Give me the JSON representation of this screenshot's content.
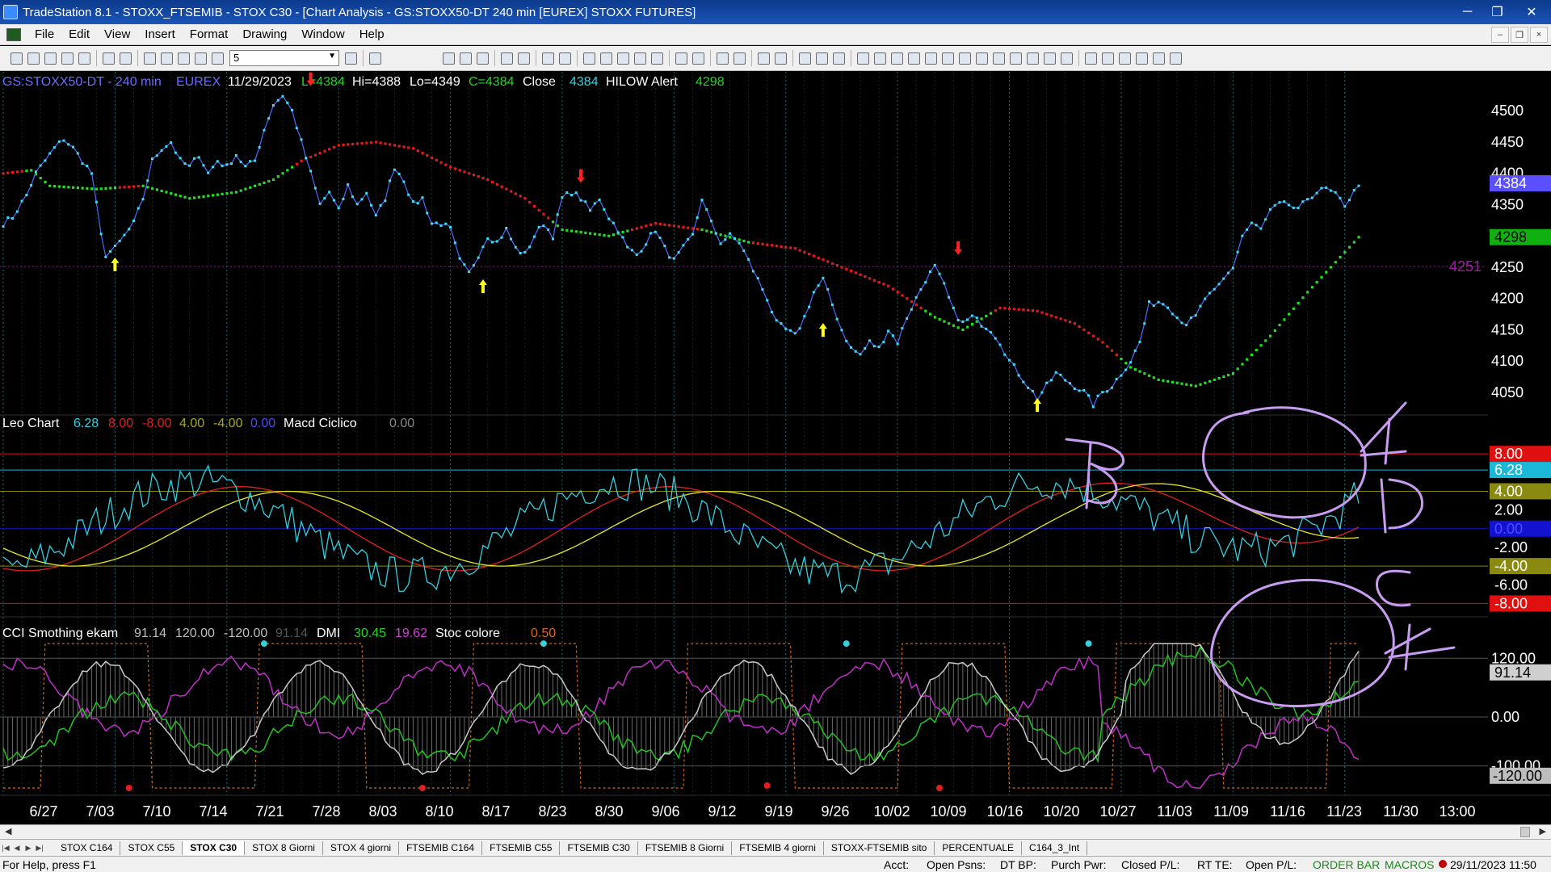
{
  "window": {
    "title": "TradeStation 8.1 - STOXX_FTSEMIB - STOX  C30 - [Chart Analysis - GS:STOXX50-DT  240 min  [EUREX] STOXX FUTURES]",
    "controls": [
      "─",
      "❐",
      "✕"
    ]
  },
  "menu": {
    "items": [
      "File",
      "Edit",
      "View",
      "Insert",
      "Format",
      "Drawing",
      "Window",
      "Help"
    ],
    "mdi_controls": [
      "–",
      "❐",
      "×"
    ]
  },
  "toolbar": {
    "combo_value": "5"
  },
  "colors": {
    "background": "#000000",
    "price_line": "#4b6cff",
    "price_dots": "#3fe0f0",
    "ma_up": "#22e022",
    "ma_down": "#e51b1b",
    "axis_text": "#ffffff",
    "cyan_osc": "#35d0e0",
    "yellow": "#e8e825",
    "red": "#e02020",
    "magenta": "#c02fc8",
    "green_osc": "#21c421",
    "grey_osc": "#bfbfbf",
    "orange_dash": "#d2691e",
    "annotation": "#c89cf0"
  },
  "panel1": {
    "label_main": "GS:STOXX50-DT - 240 min",
    "label_exchange": "EUREX",
    "label_date": "11/29/2023",
    "label_l": "L=4384",
    "label_hi": "Hi=4388",
    "label_lo": "Lo=4349",
    "label_c": "C=4384",
    "label_close": "Close",
    "label_close_val": "4384",
    "label_hilow": "HILOW Alert",
    "label_hilow_val": "4298",
    "yticks": [
      "4500",
      "4450",
      "4400",
      "4350",
      "4300",
      "4250",
      "4200",
      "4150",
      "4100",
      "4050"
    ],
    "ytick_values": [
      4500,
      4450,
      4400,
      4350,
      4300,
      4250,
      4200,
      4150,
      4100,
      4050
    ],
    "ylim": [
      4020,
      4530
    ],
    "marker_close": "4384",
    "marker_hilow": "4298",
    "marker_level": "4251",
    "level_value": 4251
  },
  "panel2": {
    "label_name": "Leo Chart",
    "val1": "6.28",
    "val2": "8.00",
    "val3": "-8.00",
    "val4": "4.00",
    "val5": "-4.00",
    "val6": "0.00",
    "label_macd": "Macd Ciclico",
    "val_macd": "0.00",
    "yticks": [
      "2.00",
      "-2.00",
      "-6.00"
    ],
    "ytick_values": [
      2,
      -2,
      -6
    ],
    "ylim": [
      -9,
      10
    ],
    "levels": [
      {
        "label": "8.00",
        "value": 8,
        "bg": "#e01010",
        "fg": "#ffffff"
      },
      {
        "label": "6.28",
        "value": 6.28,
        "bg": "#1bb8d8",
        "fg": "#ffffff"
      },
      {
        "label": "4.00",
        "value": 4,
        "bg": "#8a8a10",
        "fg": "#ffffff"
      },
      {
        "label": "0.00",
        "value": 0,
        "bg": "#1212d0",
        "fg": "#4b4bff"
      },
      {
        "label": "-4.00",
        "value": -4,
        "bg": "#8a8a10",
        "fg": "#ffffff"
      },
      {
        "label": "-8.00",
        "value": -8,
        "bg": "#e01010",
        "fg": "#ffffff"
      }
    ]
  },
  "panel3": {
    "label_name": "CCI Smothing ekam",
    "val1": "91.14",
    "val2": "120.00",
    "val3": "-120.00",
    "val4": "91.14",
    "label_dmi": "DMI",
    "val_dmi1": "30.45",
    "val_dmi2": "19.62",
    "label_stoc": "Stoc colore",
    "val_stoc": "0.50",
    "ylim": [
      -150,
      160
    ],
    "yticks": [
      "120.00",
      "0.00",
      "-100.00"
    ],
    "ytick_values": [
      120,
      0,
      -100
    ],
    "marker_cci": "91.14",
    "marker_minus120": "-120.00"
  },
  "xaxis": {
    "labels": [
      "6/27",
      "7/03",
      "7/10",
      "7/14",
      "7/21",
      "7/28",
      "8/03",
      "8/10",
      "8/17",
      "8/23",
      "8/30",
      "9/06",
      "9/12",
      "9/19",
      "9/26",
      "10/02",
      "10/09",
      "10/16",
      "10/20",
      "10/27",
      "11/03",
      "11/09",
      "11/16",
      "11/23",
      "11/30",
      "13:00"
    ]
  },
  "tabs": [
    "STOX C164",
    "STOX C55",
    "STOX  C30",
    "STOX  8 Giorni",
    "STOX 4 giorni",
    "FTSEMIB C164",
    "FTSEMIB C55",
    "FTSEMIB C30",
    "FTSEMIB  8 Giorni",
    "FTSEMIB  4 giorni",
    "STOXX-FTSEMIB sito",
    "PERCENTUALE",
    "C164_3_Int"
  ],
  "active_tab": 2,
  "status": {
    "help": "For Help, press F1",
    "acct": "Acct:",
    "open_psns": "Open Psns:",
    "dt_bp": "DT BP:",
    "purch_pwr": "Purch Pwr:",
    "closed_pl": "Closed P/L:",
    "rt_te": "RT TE:",
    "open_pl": "Open P/L:",
    "order_bar": "ORDER BAR",
    "macros": "MACROS",
    "datetime": "29/11/2023 11:50"
  },
  "chart_data": {
    "type": "line",
    "price_anchors": [
      [
        0,
        4320
      ],
      [
        2,
        4330
      ],
      [
        5,
        4365
      ],
      [
        7,
        4400
      ],
      [
        9,
        4420
      ],
      [
        11,
        4440
      ],
      [
        13,
        4455
      ],
      [
        15,
        4440
      ],
      [
        17,
        4420
      ],
      [
        19,
        4400
      ],
      [
        20,
        4350
      ],
      [
        21,
        4300
      ],
      [
        22,
        4270
      ],
      [
        24,
        4280
      ],
      [
        26,
        4300
      ],
      [
        28,
        4320
      ],
      [
        30,
        4360
      ],
      [
        32,
        4420
      ],
      [
        34,
        4440
      ],
      [
        36,
        4450
      ],
      [
        38,
        4420
      ],
      [
        40,
        4410
      ],
      [
        42,
        4430
      ],
      [
        44,
        4400
      ],
      [
        46,
        4420
      ],
      [
        48,
        4410
      ],
      [
        50,
        4430
      ],
      [
        52,
        4410
      ],
      [
        54,
        4420
      ],
      [
        56,
        4470
      ],
      [
        58,
        4510
      ],
      [
        60,
        4525
      ],
      [
        62,
        4500
      ],
      [
        64,
        4450
      ],
      [
        66,
        4400
      ],
      [
        68,
        4350
      ],
      [
        70,
        4370
      ],
      [
        72,
        4340
      ],
      [
        74,
        4380
      ],
      [
        76,
        4350
      ],
      [
        78,
        4370
      ],
      [
        80,
        4330
      ],
      [
        82,
        4360
      ],
      [
        84,
        4410
      ],
      [
        86,
        4390
      ],
      [
        88,
        4350
      ],
      [
        90,
        4360
      ],
      [
        92,
        4320
      ],
      [
        94,
        4320
      ],
      [
        96,
        4310
      ],
      [
        98,
        4260
      ],
      [
        100,
        4240
      ],
      [
        102,
        4270
      ],
      [
        104,
        4300
      ],
      [
        106,
        4290
      ],
      [
        108,
        4310
      ],
      [
        110,
        4280
      ],
      [
        112,
        4270
      ],
      [
        114,
        4300
      ],
      [
        116,
        4320
      ],
      [
        118,
        4300
      ],
      [
        120,
        4360
      ],
      [
        122,
        4370
      ],
      [
        124,
        4360
      ],
      [
        126,
        4340
      ],
      [
        128,
        4360
      ],
      [
        130,
        4330
      ],
      [
        132,
        4310
      ],
      [
        134,
        4280
      ],
      [
        136,
        4270
      ],
      [
        138,
        4290
      ],
      [
        140,
        4310
      ],
      [
        142,
        4280
      ],
      [
        144,
        4260
      ],
      [
        146,
        4280
      ],
      [
        148,
        4300
      ],
      [
        150,
        4360
      ],
      [
        152,
        4320
      ],
      [
        154,
        4290
      ],
      [
        156,
        4300
      ],
      [
        158,
        4290
      ],
      [
        160,
        4260
      ],
      [
        162,
        4230
      ],
      [
        164,
        4200
      ],
      [
        166,
        4160
      ],
      [
        168,
        4150
      ],
      [
        170,
        4140
      ],
      [
        172,
        4170
      ],
      [
        174,
        4210
      ],
      [
        176,
        4230
      ],
      [
        178,
        4190
      ],
      [
        180,
        4150
      ],
      [
        182,
        4120
      ],
      [
        184,
        4110
      ],
      [
        186,
        4130
      ],
      [
        188,
        4120
      ],
      [
        190,
        4150
      ],
      [
        192,
        4130
      ],
      [
        194,
        4170
      ],
      [
        196,
        4200
      ],
      [
        198,
        4230
      ],
      [
        200,
        4250
      ],
      [
        202,
        4220
      ],
      [
        204,
        4180
      ],
      [
        206,
        4160
      ],
      [
        208,
        4170
      ],
      [
        210,
        4160
      ],
      [
        212,
        4150
      ],
      [
        214,
        4130
      ],
      [
        216,
        4100
      ],
      [
        218,
        4080
      ],
      [
        220,
        4060
      ],
      [
        222,
        4040
      ],
      [
        224,
        4060
      ],
      [
        226,
        4080
      ],
      [
        228,
        4070
      ],
      [
        230,
        4060
      ],
      [
        232,
        4050
      ],
      [
        234,
        4030
      ],
      [
        236,
        4050
      ],
      [
        238,
        4060
      ],
      [
        240,
        4080
      ],
      [
        242,
        4100
      ],
      [
        244,
        4130
      ],
      [
        246,
        4190
      ],
      [
        248,
        4195
      ],
      [
        250,
        4190
      ],
      [
        252,
        4170
      ],
      [
        254,
        4160
      ],
      [
        256,
        4170
      ],
      [
        258,
        4200
      ],
      [
        260,
        4210
      ],
      [
        262,
        4230
      ],
      [
        264,
        4250
      ],
      [
        266,
        4300
      ],
      [
        268,
        4320
      ],
      [
        270,
        4310
      ],
      [
        272,
        4340
      ],
      [
        274,
        4350
      ],
      [
        276,
        4350
      ],
      [
        278,
        4340
      ],
      [
        280,
        4360
      ],
      [
        282,
        4370
      ],
      [
        284,
        4375
      ],
      [
        286,
        4365
      ],
      [
        288,
        4350
      ],
      [
        290,
        4370
      ],
      [
        291,
        4384
      ]
    ],
    "ma_anchors": [
      [
        0,
        4400
      ],
      [
        6,
        4405
      ],
      [
        10,
        4380
      ],
      [
        20,
        4375
      ],
      [
        30,
        4380
      ],
      [
        40,
        4360
      ],
      [
        50,
        4370
      ],
      [
        58,
        4390
      ],
      [
        64,
        4420
      ],
      [
        72,
        4445
      ],
      [
        80,
        4450
      ],
      [
        88,
        4440
      ],
      [
        96,
        4410
      ],
      [
        104,
        4390
      ],
      [
        112,
        4360
      ],
      [
        120,
        4310
      ],
      [
        130,
        4300
      ],
      [
        140,
        4320
      ],
      [
        150,
        4310
      ],
      [
        160,
        4290
      ],
      [
        170,
        4280
      ],
      [
        180,
        4250
      ],
      [
        190,
        4220
      ],
      [
        200,
        4170
      ],
      [
        206,
        4150
      ],
      [
        214,
        4185
      ],
      [
        222,
        4180
      ],
      [
        230,
        4160
      ],
      [
        236,
        4130
      ],
      [
        242,
        4090
      ],
      [
        248,
        4070
      ],
      [
        256,
        4060
      ],
      [
        264,
        4080
      ],
      [
        272,
        4140
      ],
      [
        280,
        4210
      ],
      [
        291,
        4298
      ]
    ],
    "ma_up_segments": [
      [
        5,
        24
      ],
      [
        30,
        62
      ],
      [
        118,
        134
      ],
      [
        150,
        160
      ],
      [
        198,
        212
      ],
      [
        240,
        291
      ]
    ],
    "up_arrows": [
      [
        24,
        4250
      ],
      [
        103,
        4215
      ],
      [
        176,
        4145
      ],
      [
        222,
        4025
      ]
    ],
    "down_arrows": [
      [
        66,
        4555
      ],
      [
        124,
        4400
      ],
      [
        205,
        4285
      ]
    ]
  }
}
